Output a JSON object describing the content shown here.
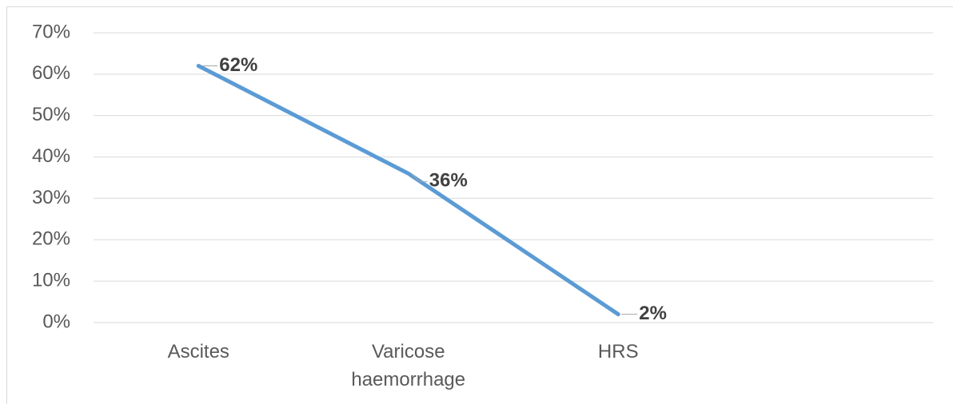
{
  "chart_data": {
    "type": "line",
    "categories": [
      "Ascites",
      "Varicose haemorrhage",
      "HRS",
      null
    ],
    "values": [
      62,
      36,
      2,
      null
    ],
    "value_labels": [
      "62%",
      "36%",
      "2%",
      null
    ],
    "color": "#5b9bd5",
    "ylim": [
      0,
      70
    ],
    "yticks": [
      {
        "value": 0,
        "label": "0%"
      },
      {
        "value": 10,
        "label": "10%"
      },
      {
        "value": 20,
        "label": "20%"
      },
      {
        "value": 30,
        "label": "30%"
      },
      {
        "value": 40,
        "label": "40%"
      },
      {
        "value": 50,
        "label": "50%"
      },
      {
        "value": 60,
        "label": "60%"
      },
      {
        "value": 70,
        "label": "70%"
      }
    ],
    "grid": true
  }
}
